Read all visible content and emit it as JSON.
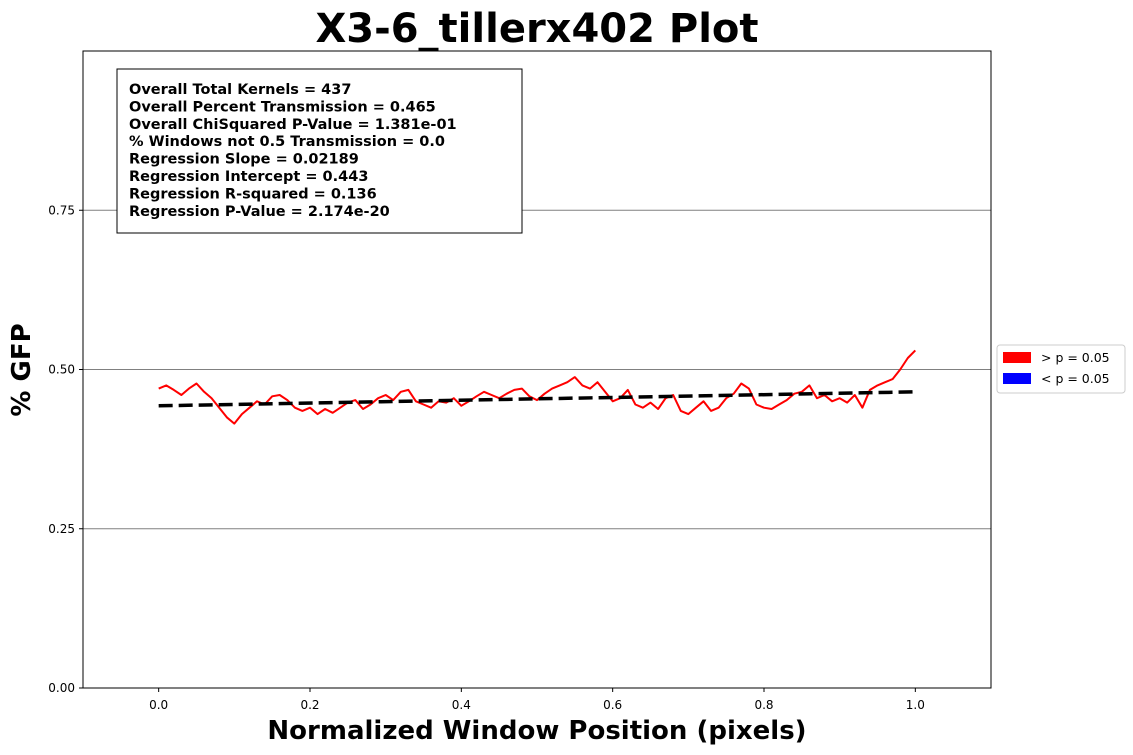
{
  "chart_data": {
    "type": "line",
    "title": "X3-6_tillerx402 Plot",
    "xlabel": "Normalized Window Position (pixels)",
    "ylabel": "% GFP",
    "xlim": [
      -0.1,
      1.1
    ],
    "ylim": [
      0.0,
      1.0
    ],
    "x_ticks": [
      {
        "value": 0.0,
        "label": "0.0"
      },
      {
        "value": 0.2,
        "label": "0.2"
      },
      {
        "value": 0.4,
        "label": "0.4"
      },
      {
        "value": 0.6,
        "label": "0.6"
      },
      {
        "value": 0.8,
        "label": "0.8"
      },
      {
        "value": 1.0,
        "label": "1.0"
      }
    ],
    "y_ticks": [
      {
        "value": 0.0,
        "label": "0.00"
      },
      {
        "value": 0.25,
        "label": "0.25"
      },
      {
        "value": 0.5,
        "label": "0.50"
      },
      {
        "value": 0.75,
        "label": "0.75"
      }
    ],
    "grid": "horizontal",
    "legend_position": "right-center",
    "legend": [
      {
        "label": "> p = 0.05",
        "color": "#ff0000"
      },
      {
        "label": "< p = 0.05",
        "color": "#0000ff"
      }
    ],
    "series": [
      {
        "color": "#ff0000",
        "x": [
          0.0,
          0.01,
          0.02,
          0.03,
          0.04,
          0.05,
          0.06,
          0.07,
          0.08,
          0.09,
          0.1,
          0.11,
          0.12,
          0.13,
          0.14,
          0.15,
          0.16,
          0.17,
          0.18,
          0.19,
          0.2,
          0.21,
          0.22,
          0.23,
          0.24,
          0.25,
          0.26,
          0.27,
          0.28,
          0.29,
          0.3,
          0.31,
          0.32,
          0.33,
          0.34,
          0.35,
          0.36,
          0.37,
          0.38,
          0.39,
          0.4,
          0.41,
          0.42,
          0.43,
          0.44,
          0.45,
          0.46,
          0.47,
          0.48,
          0.49,
          0.5,
          0.51,
          0.52,
          0.53,
          0.54,
          0.55,
          0.56,
          0.57,
          0.58,
          0.59,
          0.6,
          0.61,
          0.62,
          0.63,
          0.64,
          0.65,
          0.66,
          0.67,
          0.68,
          0.69,
          0.7,
          0.71,
          0.72,
          0.73,
          0.74,
          0.75,
          0.76,
          0.77,
          0.78,
          0.79,
          0.8,
          0.81,
          0.82,
          0.83,
          0.84,
          0.85,
          0.86,
          0.87,
          0.88,
          0.89,
          0.9,
          0.91,
          0.92,
          0.93,
          0.94,
          0.95,
          0.96,
          0.97,
          0.98,
          0.99,
          1.0
        ],
        "y": [
          0.47,
          0.475,
          0.468,
          0.46,
          0.47,
          0.478,
          0.465,
          0.455,
          0.44,
          0.425,
          0.415,
          0.43,
          0.44,
          0.45,
          0.445,
          0.458,
          0.46,
          0.452,
          0.44,
          0.435,
          0.44,
          0.43,
          0.438,
          0.432,
          0.44,
          0.448,
          0.452,
          0.438,
          0.445,
          0.455,
          0.46,
          0.452,
          0.465,
          0.468,
          0.45,
          0.445,
          0.44,
          0.45,
          0.448,
          0.455,
          0.443,
          0.45,
          0.458,
          0.465,
          0.46,
          0.455,
          0.462,
          0.468,
          0.47,
          0.458,
          0.452,
          0.462,
          0.47,
          0.475,
          0.48,
          0.488,
          0.475,
          0.47,
          0.48,
          0.465,
          0.45,
          0.455,
          0.468,
          0.445,
          0.44,
          0.448,
          0.438,
          0.455,
          0.46,
          0.435,
          0.43,
          0.44,
          0.45,
          0.435,
          0.44,
          0.455,
          0.462,
          0.478,
          0.47,
          0.445,
          0.44,
          0.438,
          0.445,
          0.452,
          0.462,
          0.465,
          0.475,
          0.455,
          0.46,
          0.45,
          0.455,
          0.448,
          0.46,
          0.44,
          0.468,
          0.475,
          0.48,
          0.485,
          0.5,
          0.518,
          0.53
        ]
      }
    ],
    "regression_line": {
      "color": "#000000",
      "style": "dashed",
      "slope": 0.02189,
      "intercept": 0.443,
      "x_range": [
        0.0,
        1.0
      ]
    },
    "annotations": [
      "Overall Total Kernels = 437",
      "Overall Percent Transmission = 0.465",
      "Overall ChiSquared P-Value = 1.381e-01",
      "% Windows not 0.5 Transmission = 0.0",
      "Regression Slope = 0.02189",
      "Regression Intercept = 0.443",
      "Regression R-squared = 0.136",
      "Regression P-Value = 2.174e-20"
    ]
  }
}
